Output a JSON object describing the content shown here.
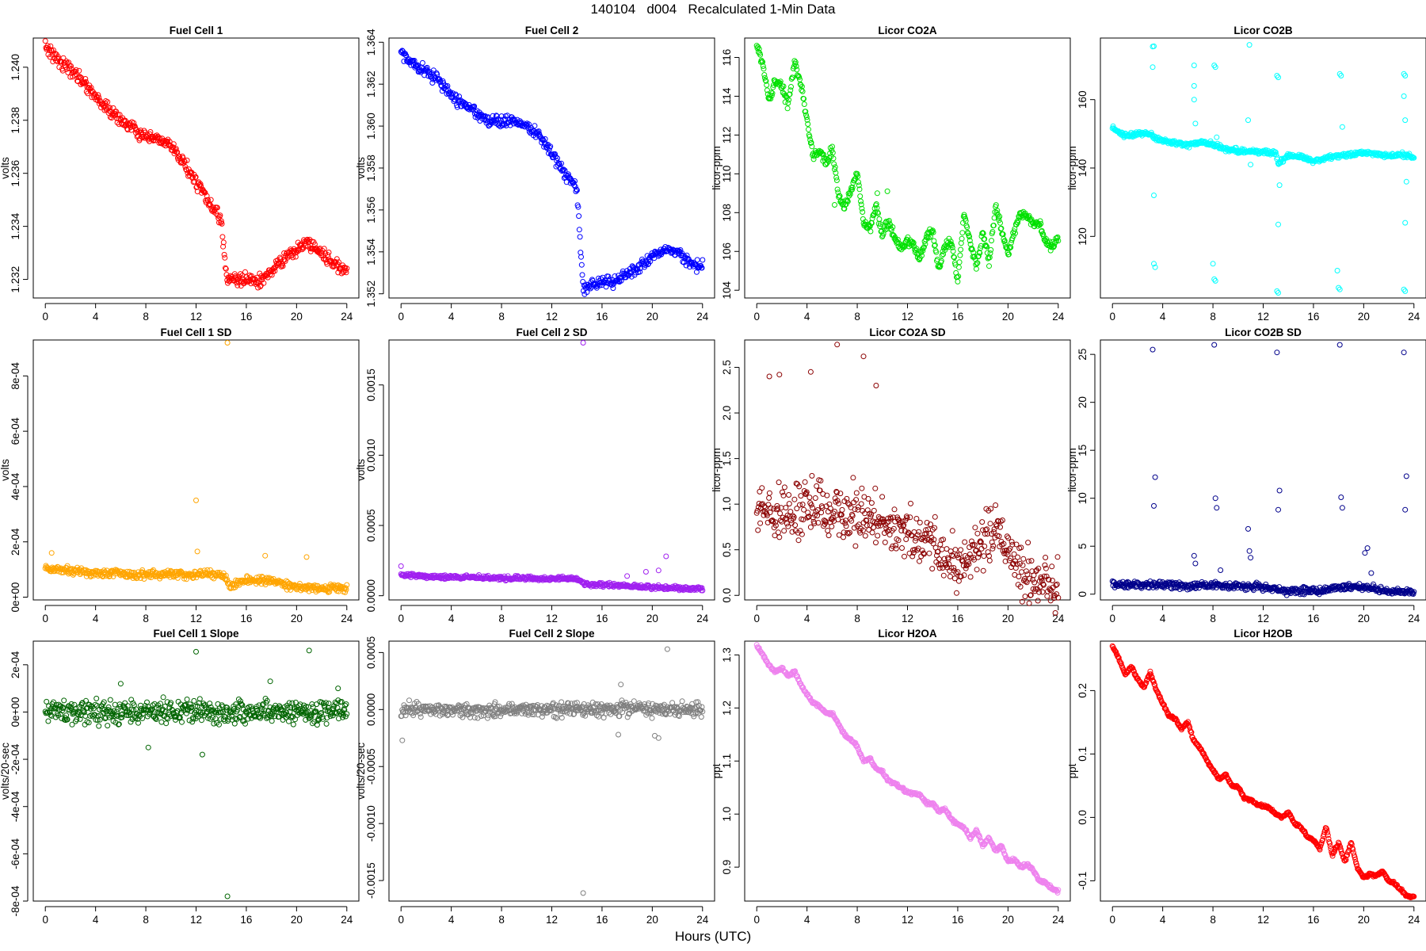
{
  "main_title": "140104   d004   Recalculated 1-Min Data",
  "x_axis_label": "Hours (UTC)",
  "chart_data": [
    {
      "type": "scatter",
      "title": "Fuel Cell 1",
      "ylabel": "volts",
      "color": "#ff0000",
      "xlim": [
        0,
        24
      ],
      "ylim": [
        1.2313,
        1.2411
      ],
      "x_ticks": [
        "0",
        "4",
        "8",
        "12",
        "16",
        "20",
        "24"
      ],
      "y_ticks": [
        "1.232",
        "1.234",
        "1.236",
        "1.238",
        "1.240"
      ],
      "x": [
        0,
        1,
        2,
        3,
        4,
        5,
        6,
        7,
        8,
        9,
        10,
        11,
        12,
        13,
        14,
        14.5,
        15,
        16,
        17,
        18,
        19,
        20,
        21,
        22,
        23,
        24
      ],
      "y": [
        1.2408,
        1.2403,
        1.2399,
        1.2395,
        1.2389,
        1.2384,
        1.238,
        1.2377,
        1.2373,
        1.2373,
        1.237,
        1.2364,
        1.2357,
        1.2349,
        1.2342,
        1.2319,
        1.232,
        1.232,
        1.2319,
        1.2323,
        1.2328,
        1.2331,
        1.2334,
        1.233,
        1.2326,
        1.2323
      ],
      "spread": 0.00035,
      "outliers": []
    },
    {
      "type": "scatter",
      "title": "Fuel Cell 2",
      "ylabel": "volts",
      "color": "#0000ff",
      "xlim": [
        0,
        24
      ],
      "ylim": [
        1.3518,
        1.3642
      ],
      "x_ticks": [
        "0",
        "4",
        "8",
        "12",
        "16",
        "20",
        "24"
      ],
      "y_ticks": [
        "1.352",
        "1.354",
        "1.356",
        "1.358",
        "1.360",
        "1.362",
        "1.364"
      ],
      "x": [
        0,
        1,
        2,
        3,
        4,
        5,
        6,
        7,
        8,
        9,
        10,
        11,
        12,
        13,
        14,
        14.5,
        15,
        16,
        17,
        18,
        19,
        20,
        21,
        22,
        23,
        24
      ],
      "y": [
        1.3635,
        1.363,
        1.3626,
        1.3622,
        1.3615,
        1.361,
        1.3606,
        1.3603,
        1.3602,
        1.3603,
        1.36,
        1.3596,
        1.3587,
        1.3578,
        1.357,
        1.3522,
        1.3524,
        1.3526,
        1.3526,
        1.3529,
        1.3533,
        1.3537,
        1.3541,
        1.354,
        1.3535,
        1.3533
      ],
      "spread": 0.0004,
      "outliers": []
    },
    {
      "type": "scatter",
      "title": "Licor CO2A",
      "ylabel": "licor-ppm",
      "color": "#00e000",
      "xlim": [
        0,
        24
      ],
      "ylim": [
        103.6,
        117.0
      ],
      "x_ticks": [
        "0",
        "4",
        "8",
        "12",
        "16",
        "20",
        "24"
      ],
      "y_ticks": [
        "104",
        "106",
        "108",
        "110",
        "112",
        "114",
        "116"
      ],
      "x": [
        0,
        0.5,
        1,
        1.5,
        2,
        2.5,
        3,
        3.5,
        4,
        4.5,
        5,
        5.5,
        6,
        6.5,
        7,
        7.5,
        8,
        8.5,
        9,
        9.5,
        10,
        10.5,
        11,
        11.5,
        12,
        12.5,
        13,
        13.5,
        14,
        14.5,
        15,
        15.5,
        16,
        16.5,
        17,
        17.5,
        18,
        18.5,
        19,
        19.5,
        20,
        20.5,
        21,
        21.5,
        22,
        22.5,
        23,
        23.5,
        24
      ],
      "y": [
        116.6,
        115.5,
        113.8,
        114.8,
        114.5,
        113.5,
        115.8,
        114.6,
        112.9,
        110.9,
        111.3,
        110.6,
        111.2,
        109.0,
        108.2,
        109.2,
        110.1,
        107.5,
        107.2,
        108.4,
        106.8,
        107.6,
        106.6,
        106.2,
        106.6,
        106.3,
        105.7,
        106.7,
        107.0,
        105.0,
        106.3,
        106.6,
        104.4,
        108.0,
        106.5,
        105.2,
        107.0,
        105.4,
        108.4,
        107.0,
        105.8,
        107.1,
        107.9,
        107.8,
        107.4,
        107.5,
        106.5,
        106.2,
        106.7
      ],
      "spread": 0.35,
      "outliers": [
        [
          9.6,
          109.0
        ],
        [
          10.4,
          109.1
        ],
        [
          6.2,
          108.4
        ]
      ]
    },
    {
      "type": "scatter",
      "title": "Licor CO2B",
      "ylabel": "licor-ppm",
      "color": "#00ffff",
      "xlim": [
        0,
        24
      ],
      "ylim": [
        102,
        178
      ],
      "x_ticks": [
        "0",
        "4",
        "8",
        "12",
        "16",
        "20",
        "24"
      ],
      "y_ticks": [
        "120",
        "140",
        "160"
      ],
      "x": [
        0,
        1,
        2,
        3,
        3.3,
        4,
        5,
        6,
        7,
        8,
        9,
        10,
        11,
        12,
        13,
        13.2,
        14,
        15,
        16,
        17,
        18,
        19,
        20,
        21,
        22,
        23,
        24
      ],
      "y": [
        151.5,
        149.5,
        150,
        150,
        149,
        148,
        147.5,
        146.5,
        147.5,
        147,
        145.5,
        145,
        145,
        144.5,
        144.5,
        141.5,
        143.5,
        143.5,
        142,
        143,
        143.5,
        144,
        144.5,
        144,
        143.5,
        144,
        143
      ],
      "spread": 1.0,
      "outliers": [
        [
          3.2,
          175.5
        ],
        [
          3.3,
          175.6
        ],
        [
          3.2,
          169.5
        ],
        [
          3.3,
          132
        ],
        [
          3.3,
          112
        ],
        [
          3.4,
          111
        ],
        [
          6.5,
          170
        ],
        [
          6.5,
          164
        ],
        [
          6.5,
          160
        ],
        [
          6.6,
          153
        ],
        [
          8.1,
          170
        ],
        [
          8.2,
          169.5
        ],
        [
          8.0,
          112
        ],
        [
          8.1,
          107.5
        ],
        [
          8.2,
          107
        ],
        [
          8.3,
          149
        ],
        [
          10.9,
          176
        ],
        [
          10.8,
          154
        ],
        [
          10.9,
          145
        ],
        [
          11.0,
          141
        ],
        [
          13.1,
          167
        ],
        [
          13.2,
          166.5
        ],
        [
          13.2,
          123.5
        ],
        [
          13.1,
          104
        ],
        [
          13.2,
          103.5
        ],
        [
          13.3,
          135
        ],
        [
          18.1,
          167.5
        ],
        [
          18.2,
          167
        ],
        [
          17.9,
          110
        ],
        [
          18.0,
          105
        ],
        [
          18.1,
          104.5
        ],
        [
          18.3,
          152
        ],
        [
          23.2,
          167.5
        ],
        [
          23.3,
          167
        ],
        [
          23.2,
          161
        ],
        [
          23.3,
          154
        ],
        [
          23.3,
          124
        ],
        [
          23.4,
          136
        ],
        [
          23.2,
          104.5
        ],
        [
          23.3,
          104
        ]
      ]
    },
    {
      "type": "scatter",
      "title": "Fuel Cell 1 SD",
      "ylabel": "volts",
      "color": "#ffa500",
      "xlim": [
        0,
        24
      ],
      "ylim": [
        -1e-05,
        0.00093
      ],
      "x_ticks": [
        "0",
        "4",
        "8",
        "12",
        "16",
        "20",
        "24"
      ],
      "y_ticks": [
        "0e+00",
        "2e-04",
        "4e-04",
        "6e-04",
        "8e-04"
      ],
      "x": [
        0,
        2,
        4,
        6,
        8,
        10,
        12,
        14.2,
        14.6,
        16,
        18,
        20,
        22,
        24
      ],
      "y": [
        0.0001,
        9.5e-05,
        8.8e-05,
        8.5e-05,
        8.2e-05,
        8.2e-05,
        8e-05,
        8e-05,
        4.5e-05,
        6e-05,
        6e-05,
        3.5e-05,
        3.2e-05,
        3.2e-05
      ],
      "spread": 2.2e-05,
      "outliers": [
        [
          14.5,
          0.00092
        ],
        [
          12.0,
          0.00035
        ],
        [
          12.1,
          0.000165
        ],
        [
          17.5,
          0.00015
        ],
        [
          20.8,
          0.000145
        ],
        [
          0.5,
          0.00016
        ]
      ]
    },
    {
      "type": "scatter",
      "title": "Fuel Cell 2 SD",
      "ylabel": "volts",
      "color": "#a020f0",
      "xlim": [
        0,
        24
      ],
      "ylim": [
        -3e-05,
        0.00182
      ],
      "x_ticks": [
        "0",
        "4",
        "8",
        "12",
        "16",
        "20",
        "24"
      ],
      "y_ticks": [
        "0.0000",
        "0.0005",
        "0.0010",
        "0.0015"
      ],
      "x": [
        0,
        2,
        4,
        6,
        8,
        10,
        12,
        14.2,
        14.6,
        16,
        18,
        20,
        22,
        24
      ],
      "y": [
        0.00015,
        0.00014,
        0.00013,
        0.00013,
        0.000125,
        0.000125,
        0.00012,
        0.00012,
        8e-05,
        8e-05,
        7e-05,
        6e-05,
        5.5e-05,
        5e-05
      ],
      "spread": 2.2e-05,
      "outliers": [
        [
          14.5,
          0.0018
        ],
        [
          21.1,
          0.00028
        ],
        [
          0,
          0.00021
        ],
        [
          19.5,
          0.00017
        ],
        [
          20.5,
          0.00018
        ],
        [
          18,
          0.00014
        ]
      ]
    },
    {
      "type": "scatter",
      "title": "Licor CO2A SD",
      "ylabel": "licor-ppm",
      "color": "#8b0000",
      "xlim": [
        0,
        24
      ],
      "ylim": [
        -0.05,
        2.8
      ],
      "x_ticks": [
        "0",
        "4",
        "8",
        "12",
        "16",
        "20",
        "24"
      ],
      "y_ticks": [
        "0.0",
        "0.5",
        "1.0",
        "1.5",
        "2.0",
        "2.5"
      ],
      "x": [
        0,
        2,
        4,
        6,
        8,
        10,
        12,
        14,
        15,
        16,
        17,
        18,
        19,
        20,
        21,
        22,
        23,
        24
      ],
      "y": [
        1.0,
        0.9,
        1.0,
        0.9,
        0.9,
        0.8,
        0.7,
        0.55,
        0.35,
        0.3,
        0.5,
        0.6,
        0.7,
        0.55,
        0.3,
        0.15,
        0.15,
        0.1
      ],
      "spread": 0.45,
      "outliers": [
        [
          6.4,
          2.75
        ],
        [
          8.5,
          2.62
        ],
        [
          9.5,
          2.3
        ],
        [
          1.0,
          2.4
        ],
        [
          1.8,
          2.42
        ],
        [
          4.3,
          2.45
        ]
      ]
    },
    {
      "type": "scatter",
      "title": "Licor CO2B SD",
      "ylabel": "licor-ppm",
      "color": "#00008b",
      "xlim": [
        0,
        24
      ],
      "ylim": [
        -0.6,
        26.5
      ],
      "x_ticks": [
        "0",
        "4",
        "8",
        "12",
        "16",
        "20",
        "24"
      ],
      "y_ticks": [
        "0",
        "5",
        "10",
        "15",
        "20",
        "25"
      ],
      "x": [
        0,
        2,
        4,
        6,
        8,
        10,
        12,
        14,
        16,
        18,
        20,
        22,
        24
      ],
      "y": [
        1.1,
        1.0,
        0.95,
        0.9,
        0.9,
        0.85,
        0.75,
        0.3,
        0.35,
        0.7,
        0.8,
        0.3,
        0.2
      ],
      "spread": 0.55,
      "outliers": [
        [
          3.2,
          25.5
        ],
        [
          3.3,
          9.2
        ],
        [
          3.4,
          12.2
        ],
        [
          6.5,
          4.0
        ],
        [
          6.6,
          3.2
        ],
        [
          8.1,
          26.0
        ],
        [
          8.2,
          10.0
        ],
        [
          8.3,
          9.0
        ],
        [
          8.6,
          2.5
        ],
        [
          10.8,
          6.8
        ],
        [
          10.9,
          4.5
        ],
        [
          11.0,
          3.8
        ],
        [
          13.1,
          25.2
        ],
        [
          13.2,
          8.8
        ],
        [
          13.3,
          10.8
        ],
        [
          18.1,
          26.0
        ],
        [
          18.2,
          10.1
        ],
        [
          18.3,
          9.0
        ],
        [
          20.1,
          4.3
        ],
        [
          20.3,
          4.8
        ],
        [
          20.6,
          2.2
        ],
        [
          23.2,
          25.2
        ],
        [
          23.3,
          8.8
        ],
        [
          23.4,
          12.3
        ]
      ]
    },
    {
      "type": "scatter",
      "title": "Fuel Cell 1 Slope",
      "ylabel": "volts/20-sec",
      "color": "#006400",
      "xlim": [
        0,
        24
      ],
      "ylim": [
        -0.0008,
        0.0003
      ],
      "x_ticks": [
        "0",
        "4",
        "8",
        "12",
        "16",
        "20",
        "24"
      ],
      "y_ticks": [
        "-8e-04",
        "-6e-04",
        "-4e-04",
        "-2e-04",
        "0e+00",
        "2e-04"
      ],
      "x": [
        0,
        24
      ],
      "y": [
        0,
        0
      ],
      "spread": 7.5e-05,
      "outliers": [
        [
          14.5,
          -0.00078
        ],
        [
          12.0,
          0.000255
        ],
        [
          21.0,
          0.00026
        ],
        [
          12.5,
          -0.00018
        ],
        [
          8.2,
          -0.00015
        ],
        [
          17.9,
          0.00013
        ],
        [
          6.0,
          0.00012
        ],
        [
          23.3,
          0.0001
        ]
      ]
    },
    {
      "type": "scatter",
      "title": "Fuel Cell 2 Slope",
      "ylabel": "volts/20-sec",
      "color": "#7f7f7f",
      "xlim": [
        0,
        24
      ],
      "ylim": [
        -0.00168,
        0.0006
      ],
      "x_ticks": [
        "0",
        "4",
        "8",
        "12",
        "16",
        "20",
        "24"
      ],
      "y_ticks": [
        "-0.0015",
        "-0.0010",
        "-0.0005",
        "0.0000",
        "0.0005"
      ],
      "x": [
        0,
        24
      ],
      "y": [
        0,
        0
      ],
      "spread": 9e-05,
      "outliers": [
        [
          14.5,
          -0.00161
        ],
        [
          21.2,
          0.00053
        ],
        [
          0.1,
          -0.00027
        ],
        [
          20.2,
          -0.00023
        ],
        [
          20.5,
          -0.00025
        ],
        [
          17.5,
          0.00022
        ],
        [
          17.3,
          -0.00022
        ]
      ]
    },
    {
      "type": "scatter",
      "title": "Licor H2OA",
      "ylabel": "ppt",
      "color": "#ee82ee",
      "xlim": [
        0,
        24
      ],
      "ylim": [
        0.836,
        1.326
      ],
      "x_ticks": [
        "0",
        "4",
        "8",
        "12",
        "16",
        "20",
        "24"
      ],
      "y_ticks": [
        "0.9",
        "1.0",
        "1.1",
        "1.2",
        "1.3"
      ],
      "x": [
        0,
        0.5,
        1,
        1.5,
        2,
        2.5,
        3,
        3.5,
        4,
        4.5,
        5,
        5.5,
        6,
        6.5,
        7,
        7.5,
        8,
        8.5,
        9,
        9.5,
        10,
        10.5,
        11,
        11.5,
        12,
        12.5,
        13,
        13.5,
        14,
        14.5,
        15,
        15.5,
        16,
        16.5,
        17,
        17.5,
        18,
        18.5,
        19,
        19.5,
        20,
        20.5,
        21,
        21.5,
        22,
        22.5,
        23,
        23.5,
        24
      ],
      "y": [
        1.318,
        1.3,
        1.28,
        1.268,
        1.275,
        1.26,
        1.27,
        1.245,
        1.225,
        1.21,
        1.203,
        1.19,
        1.19,
        1.17,
        1.15,
        1.14,
        1.128,
        1.1,
        1.105,
        1.085,
        1.08,
        1.062,
        1.058,
        1.05,
        1.04,
        1.04,
        1.036,
        1.02,
        1.02,
        1.005,
        1.01,
        0.99,
        0.98,
        0.975,
        0.955,
        0.97,
        0.94,
        0.955,
        0.93,
        0.94,
        0.91,
        0.915,
        0.9,
        0.905,
        0.895,
        0.875,
        0.87,
        0.86,
        0.855
      ],
      "spread": 0.004,
      "outliers": []
    },
    {
      "type": "scatter",
      "title": "Licor H2OB",
      "ylabel": "ppt",
      "color": "#ff0000",
      "xlim": [
        0,
        24
      ],
      "ylim": [
        -0.132,
        0.278
      ],
      "x_ticks": [
        "0",
        "4",
        "8",
        "12",
        "16",
        "20",
        "24"
      ],
      "y_ticks": [
        "-0.1",
        "0.0",
        "0.1",
        "0.2"
      ],
      "x": [
        0,
        0.5,
        1,
        1.5,
        2,
        2.5,
        3,
        3.5,
        4,
        4.5,
        5,
        5.5,
        6,
        6.5,
        7,
        7.5,
        8,
        8.5,
        9,
        9.5,
        10,
        10.5,
        11,
        11.5,
        12,
        12.5,
        13,
        13.5,
        14,
        14.5,
        15,
        15.5,
        16,
        16.5,
        17,
        17.5,
        18,
        18.5,
        19,
        19.5,
        20,
        20.5,
        21,
        21.5,
        22,
        22.5,
        23,
        23.5,
        24
      ],
      "y": [
        0.27,
        0.252,
        0.225,
        0.238,
        0.218,
        0.205,
        0.228,
        0.2,
        0.18,
        0.16,
        0.155,
        0.14,
        0.15,
        0.12,
        0.108,
        0.09,
        0.075,
        0.06,
        0.068,
        0.05,
        0.048,
        0.03,
        0.028,
        0.02,
        0.018,
        0.015,
        0.005,
        0.0,
        0.008,
        -0.01,
        -0.015,
        -0.03,
        -0.035,
        -0.05,
        -0.015,
        -0.06,
        -0.04,
        -0.07,
        -0.04,
        -0.08,
        -0.095,
        -0.09,
        -0.092,
        -0.085,
        -0.1,
        -0.105,
        -0.115,
        -0.125,
        -0.125
      ],
      "spread": 0.003,
      "outliers": []
    }
  ]
}
